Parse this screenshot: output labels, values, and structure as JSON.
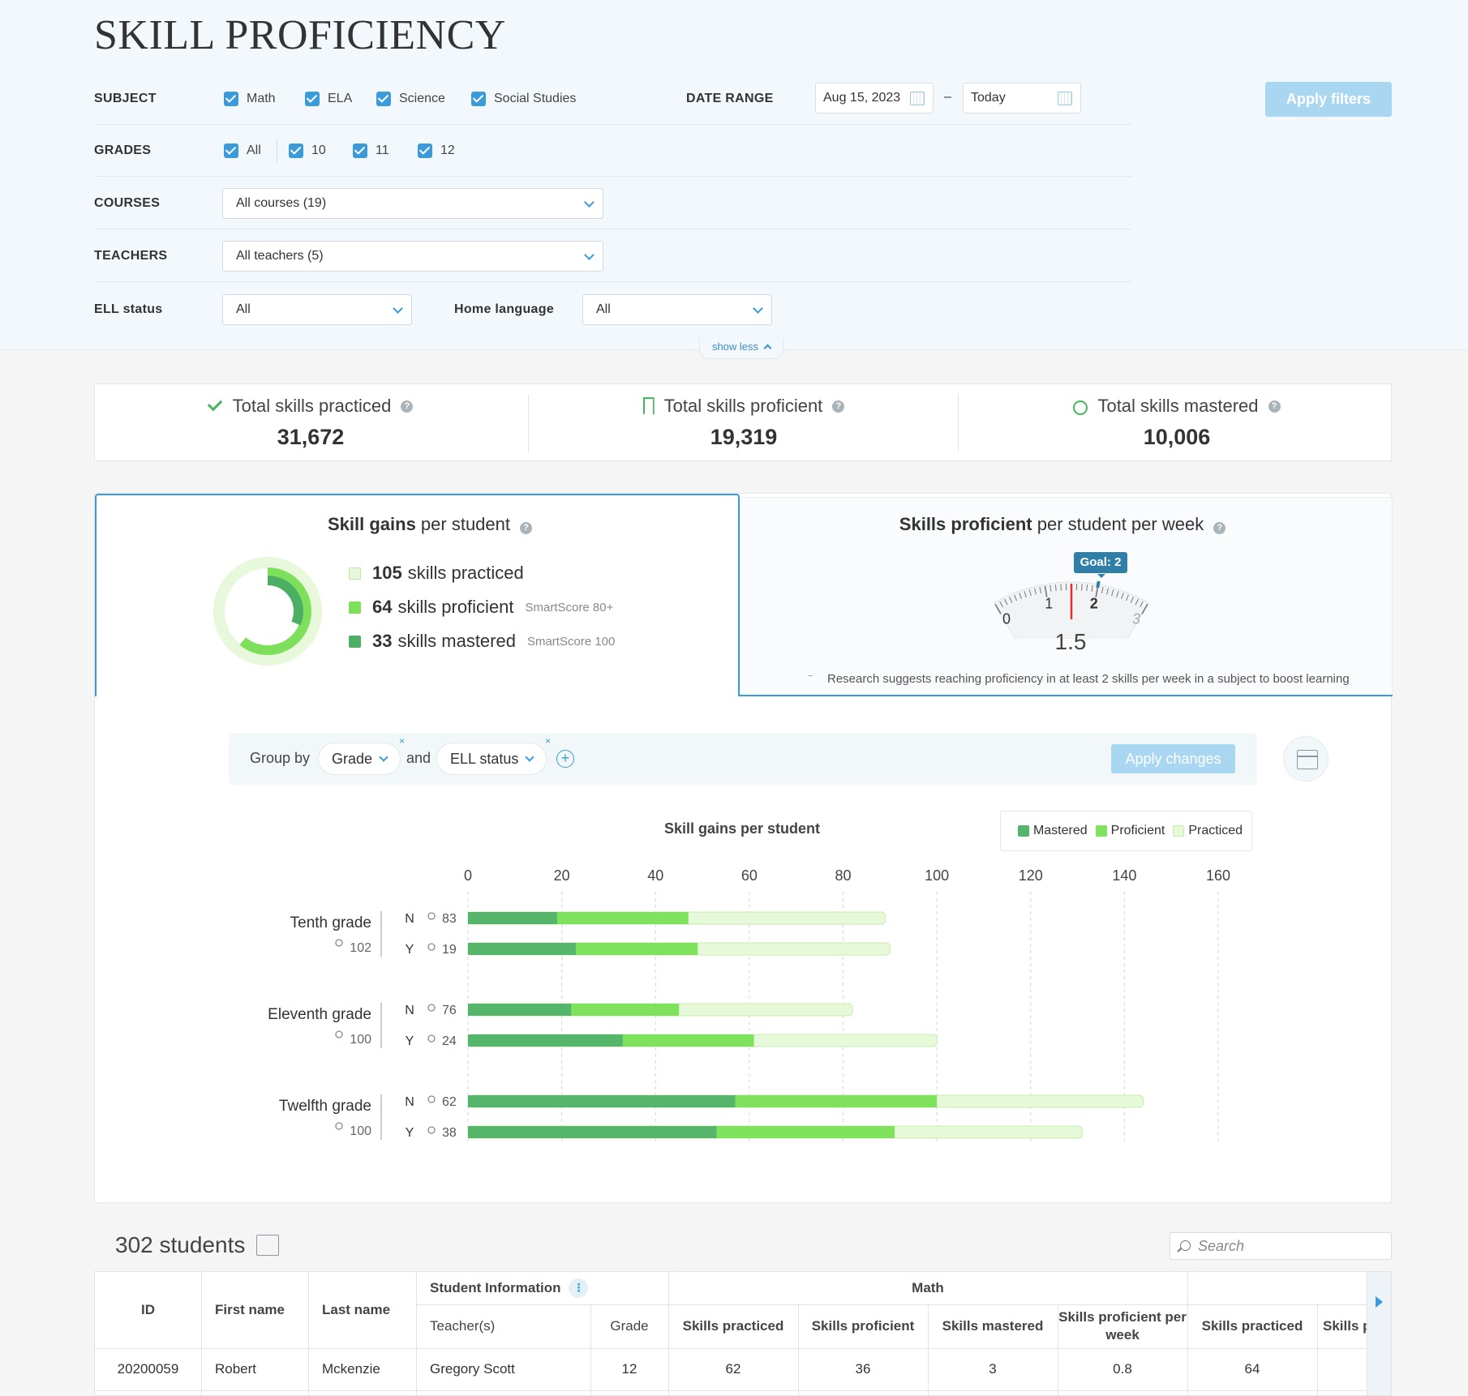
{
  "title": "SKILL PROFICIENCY",
  "filters": {
    "subject": {
      "label": "SUBJECT",
      "options": [
        "Math",
        "ELA",
        "Science",
        "Social Studies"
      ]
    },
    "date_range": {
      "label": "DATE RANGE",
      "start": "Aug 15, 2023",
      "end": "Today",
      "separator": "–"
    },
    "grades": {
      "label": "GRADES",
      "options": [
        "All",
        "10",
        "11",
        "12"
      ]
    },
    "courses": {
      "label": "COURSES",
      "value": "All courses (19)"
    },
    "teachers": {
      "label": "TEACHERS",
      "value": "All teachers (5)"
    },
    "ell": {
      "label": "ELL status",
      "value": "All"
    },
    "home_language": {
      "label": "Home language",
      "value": "All"
    },
    "apply_label": "Apply filters",
    "show_less": "show less"
  },
  "stats": [
    {
      "label": "Total skills practiced",
      "value": "31,672",
      "icon": "check-icon"
    },
    {
      "label": "Total skills proficient",
      "value": "19,319",
      "icon": "bookmark-icon"
    },
    {
      "label": "Total skills mastered",
      "value": "10,006",
      "icon": "apple-icon"
    }
  ],
  "skill_gains": {
    "title_bold": "Skill gains",
    "title_rest": " per student",
    "items": [
      {
        "value": "105",
        "label": "skills practiced",
        "note": "",
        "color": "#e6f8d6"
      },
      {
        "value": "64",
        "label": "skills proficient",
        "note": "SmartScore 80+",
        "color": "#7ddf5a"
      },
      {
        "value": "33",
        "label": "skills mastered",
        "note": "SmartScore 100",
        "color": "#4caf64"
      }
    ],
    "donut": {
      "practiced": 105,
      "proficient": 64,
      "mastered": 33
    }
  },
  "per_week": {
    "title_bold": "Skills proficient",
    "title_rest": " per student per week",
    "goal_label": "Goal: 2",
    "value": "1.5",
    "gauge": {
      "min": 0,
      "max": 3,
      "value": 1.5,
      "goal": 2,
      "ticks": [
        "0",
        "1",
        "2",
        "3"
      ]
    },
    "research_text": "Research suggests reaching proficiency in at least 2 skills per week in a subject to boost learning"
  },
  "group_by": {
    "label": "Group by",
    "first": "Grade",
    "connector": "and",
    "second": "ELL status",
    "remove": "×",
    "add": "+",
    "apply_label": "Apply changes"
  },
  "chart_data": {
    "type": "bar",
    "title": "Skill gains per student",
    "legend": [
      "Mastered",
      "Proficient",
      "Practiced"
    ],
    "legend_placement": "top-right",
    "colors": {
      "mastered": "#55b66b",
      "proficient": "#7ee25d",
      "practiced": "#e6f9d8"
    },
    "xlim": [
      0,
      160
    ],
    "ticks": [
      0,
      20,
      40,
      60,
      80,
      100,
      120,
      140,
      160
    ],
    "groups": [
      {
        "name": "Tenth grade",
        "count": "102",
        "rows": [
          {
            "label": "N",
            "count": "83",
            "mastered": 19,
            "proficient": 47,
            "practiced": 89
          },
          {
            "label": "Y",
            "count": "19",
            "mastered": 23,
            "proficient": 49,
            "practiced": 90
          }
        ]
      },
      {
        "name": "Eleventh grade",
        "count": "100",
        "rows": [
          {
            "label": "N",
            "count": "76",
            "mastered": 22,
            "proficient": 45,
            "practiced": 82
          },
          {
            "label": "Y",
            "count": "24",
            "mastered": 33,
            "proficient": 61,
            "practiced": 100
          }
        ]
      },
      {
        "name": "Twelfth grade",
        "count": "100",
        "rows": [
          {
            "label": "N",
            "count": "62",
            "mastered": 57,
            "proficient": 100,
            "practiced": 144
          },
          {
            "label": "Y",
            "count": "38",
            "mastered": 53,
            "proficient": 91,
            "practiced": 131
          }
        ]
      }
    ]
  },
  "students": {
    "title": "302 students",
    "search_placeholder": "Search",
    "columns": {
      "id": "ID",
      "first": "First name",
      "last": "Last name",
      "student_info": "Student Information",
      "teachers": "Teacher(s)",
      "grade": "Grade",
      "math": "Math",
      "practiced": "Skills practiced",
      "proficient": "Skills proficient",
      "mastered": "Skills mastered",
      "per_week": "Skills proficient per week",
      "practiced2": "Skills practiced",
      "cut": "Skills p"
    },
    "rows": [
      {
        "id": "20200059",
        "first": "Robert",
        "last": "Mckenzie",
        "teacher": "Gregory Scott",
        "grade": "12",
        "practiced": "62",
        "proficient": "36",
        "mastered": "3",
        "per_week": "0.8",
        "practiced2": "64"
      }
    ]
  }
}
